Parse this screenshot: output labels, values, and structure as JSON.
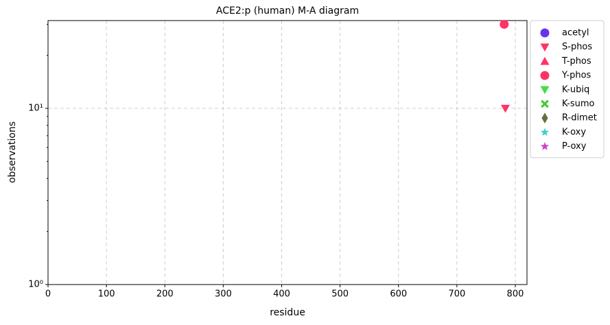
{
  "chart_data": {
    "type": "scatter",
    "title": "ACE2:p (human) M-A diagram",
    "x_label": "residue",
    "y_label": "observations",
    "xlim": [
      0,
      820
    ],
    "xticks": [
      0,
      100,
      200,
      300,
      400,
      500,
      600,
      700,
      800
    ],
    "ylim": [
      1,
      31.5
    ],
    "y_log_scale": true,
    "yticks": [
      {
        "value": 1,
        "label": "10⁰"
      },
      {
        "value": 10,
        "label": "10¹"
      }
    ],
    "yminorticks": [
      2,
      3,
      4,
      5,
      6,
      7,
      8,
      9,
      20,
      30
    ],
    "grid": true,
    "legend_position": "outside-right",
    "series": [
      {
        "name": "acetyl",
        "color": "#6633ee",
        "marker": "circle",
        "x": [],
        "values": []
      },
      {
        "name": "S-phos",
        "color": "#ff3366",
        "marker": "triangle-down",
        "x": [
          783
        ],
        "values": [
          10
        ]
      },
      {
        "name": "T-phos",
        "color": "#ff3366",
        "marker": "triangle-up",
        "x": [],
        "values": []
      },
      {
        "name": "Y-phos",
        "color": "#ff3366",
        "marker": "circle",
        "x": [
          781
        ],
        "values": [
          30
        ]
      },
      {
        "name": "K-ubiq",
        "color": "#44dd44",
        "marker": "triangle-down",
        "x": [],
        "values": []
      },
      {
        "name": "K-sumo",
        "color": "#44cc33",
        "marker": "x",
        "x": [],
        "values": []
      },
      {
        "name": "R-dimet",
        "color": "#6b6b40",
        "marker": "diamond",
        "x": [],
        "values": []
      },
      {
        "name": "K-oxy",
        "color": "#44cccc",
        "marker": "star",
        "x": [],
        "values": []
      },
      {
        "name": "P-oxy",
        "color": "#cc44cc",
        "marker": "star",
        "x": [],
        "values": []
      }
    ]
  }
}
